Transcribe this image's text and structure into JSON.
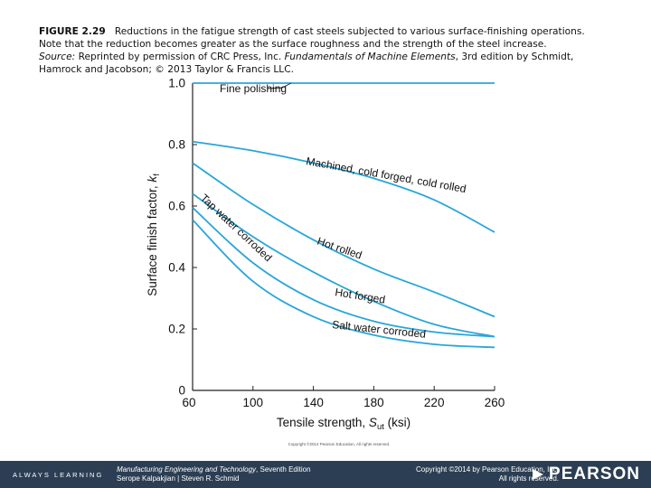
{
  "caption": {
    "fig_label": "FIGURE 2.29",
    "line1": "Reductions in the fatigue strength of cast steels subjected to various surface-finishing operations.",
    "line2": "Note that the reduction becomes greater as the surface roughness and the strength of the steel increase.",
    "source_label": "Source:",
    "source_text_a": "Reprinted by permission of CRC Press, Inc.",
    "source_title": "Fundamentals of Machine Elements",
    "source_text_b": ", 3rd edition by Schmidt,",
    "line4": "Hamrock and Jacobson; © 2013 Taylor & Francis LLC."
  },
  "chart_data": {
    "type": "line",
    "xlabel_main": "Tensile strength, ",
    "xlabel_sym": "S",
    "xlabel_sub": "ut",
    "xlabel_unit": " (ksi)",
    "ylabel_main": "Surface finish factor, ",
    "ylabel_sym": "k",
    "ylabel_sub": "f",
    "xlim": [
      60,
      260
    ],
    "ylim": [
      0,
      1.0
    ],
    "xticks": [
      60,
      100,
      140,
      180,
      220,
      260
    ],
    "yticks": [
      0,
      0.2,
      0.4,
      0.6,
      0.8,
      1.0
    ],
    "series": [
      {
        "name": "Fine polishing",
        "x": [
          60,
          260
        ],
        "y": [
          1.0,
          1.0
        ]
      },
      {
        "name": "Machined, cold forged, cold rolled",
        "x": [
          60,
          100,
          140,
          180,
          220,
          260
        ],
        "y": [
          0.81,
          0.78,
          0.74,
          0.69,
          0.62,
          0.515
        ]
      },
      {
        "name": "Hot rolled",
        "x": [
          60,
          100,
          140,
          180,
          220,
          260
        ],
        "y": [
          0.74,
          0.605,
          0.49,
          0.395,
          0.32,
          0.24
        ]
      },
      {
        "name": "Tap water corroded",
        "x": [
          60,
          100,
          140,
          180,
          220,
          260
        ],
        "y": [
          0.64,
          0.5,
          0.385,
          0.29,
          0.215,
          0.175
        ]
      },
      {
        "name": "Hot forged",
        "x": [
          60,
          100,
          140,
          180,
          220,
          260
        ],
        "y": [
          0.595,
          0.415,
          0.295,
          0.225,
          0.19,
          0.175
        ]
      },
      {
        "name": "Salt water corroded",
        "x": [
          60,
          100,
          140,
          180,
          220,
          260
        ],
        "y": [
          0.555,
          0.355,
          0.24,
          0.18,
          0.15,
          0.14
        ]
      }
    ],
    "copyright_small": "Copyright ©2014 Pearson Education, All rights reserved."
  },
  "footer": {
    "always_learning": "ALWAYS LEARNING",
    "book_title": "Manufacturing Engineering and Technology",
    "edition": ", Seventh Edition",
    "authors": "Serope Kalpakjian | Steven R. Schmid",
    "copyright1": "Copyright ©2014 by Pearson Education, Inc.",
    "copyright2": "All rights reserved.",
    "logo": "PEARSON"
  },
  "colors": {
    "curve": "#29a6d8",
    "axis": "#222222",
    "footer_bg": "#2c3e53"
  }
}
